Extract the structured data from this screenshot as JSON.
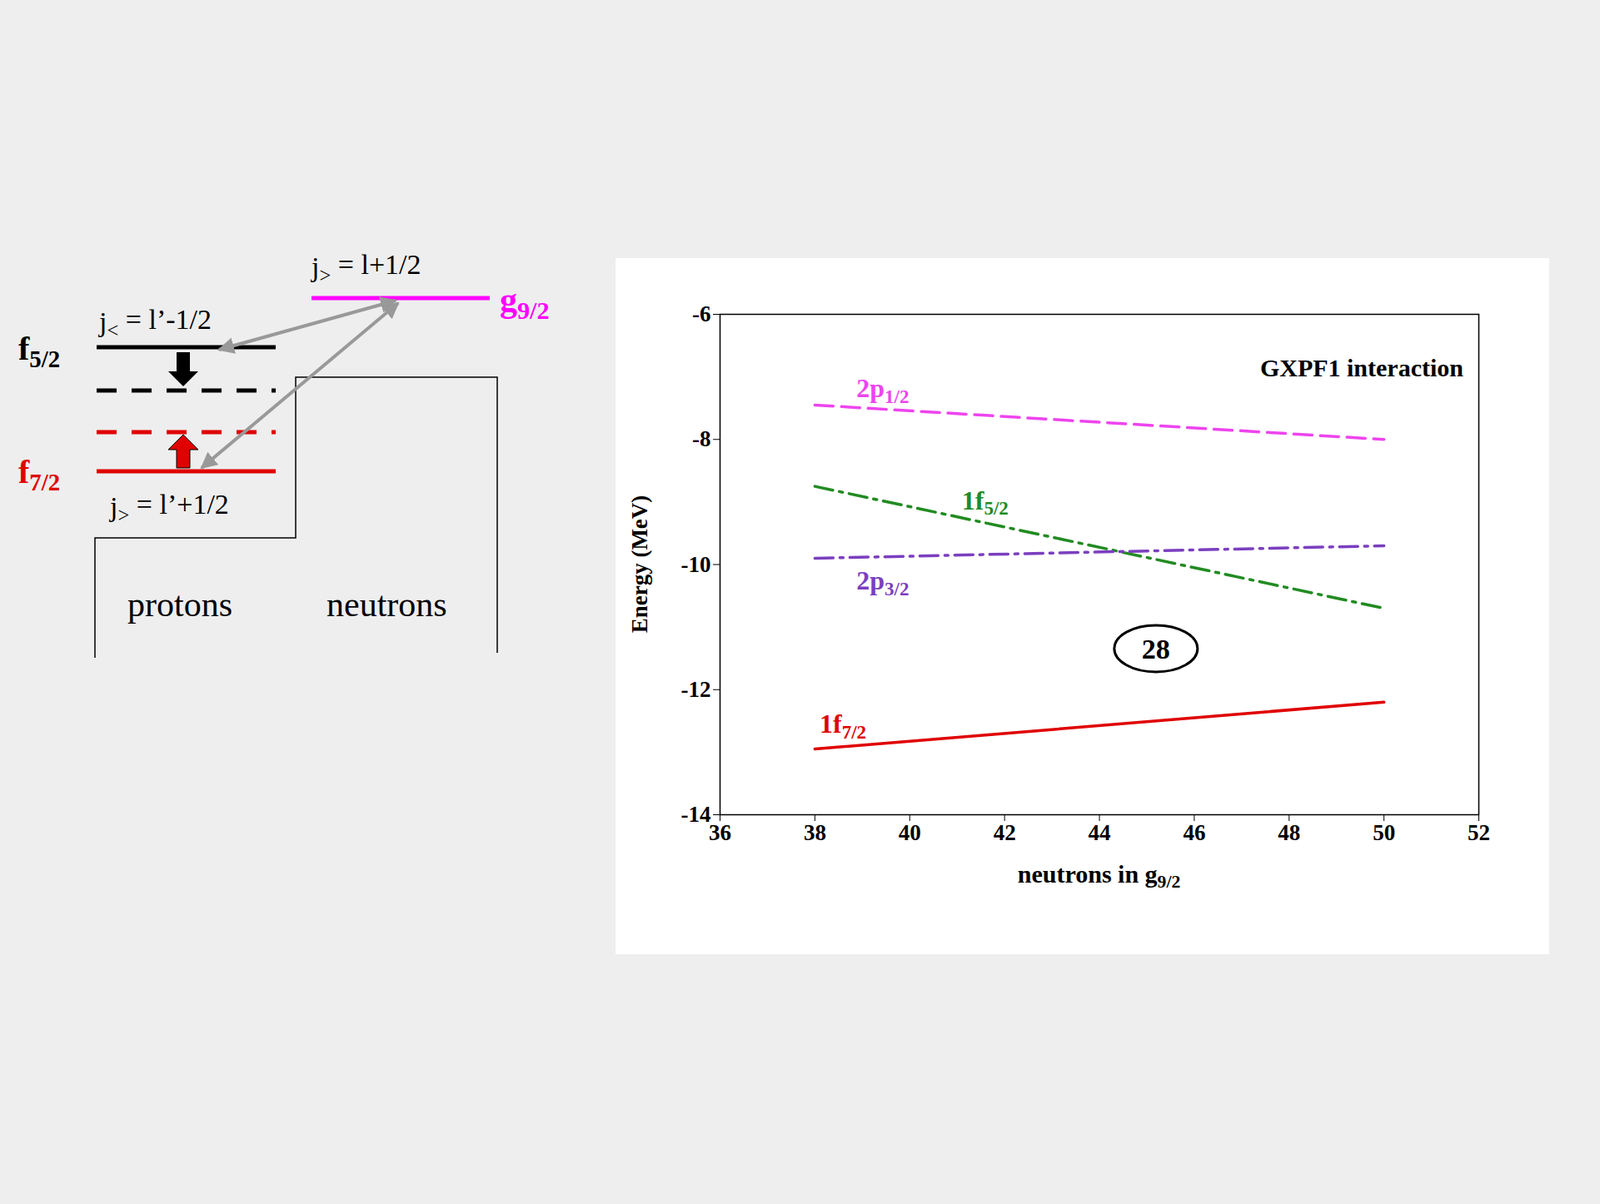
{
  "chart_data": {
    "type": "line",
    "x_label": "neutrons in g9/2",
    "y_label": "Energy (MeV)",
    "x": [
      38,
      50
    ],
    "xlim": [
      36,
      52
    ],
    "xticks": [
      36,
      38,
      40,
      42,
      44,
      46,
      48,
      50,
      52
    ],
    "ylim": [
      -14,
      -6
    ],
    "yticks": [
      -14,
      -12,
      -10,
      -8,
      -6
    ],
    "grid": false,
    "series": [
      {
        "name": "2p1/2",
        "color": "#ee44ee",
        "line_style": "dashed",
        "values": [
          -7.45,
          -8.0
        ]
      },
      {
        "name": "1f5/2",
        "color": "#228b22",
        "line_style": "dashdot",
        "values": [
          -8.75,
          -10.7
        ]
      },
      {
        "name": "2p3/2",
        "color": "#7b3fbf",
        "line_style": "dashdot",
        "values": [
          -9.9,
          -9.7
        ]
      },
      {
        "name": "1f7/2",
        "color": "#e00000",
        "line_style": "solid",
        "values": [
          -12.95,
          -12.2
        ]
      }
    ],
    "annotations": [
      {
        "text": "GXPF1 interaction"
      },
      {
        "text": "28",
        "x": 45.2,
        "y": -11.35
      }
    ]
  },
  "diagram": {
    "proton_levels": [
      {
        "label": "f5/2",
        "j": "j< = l’-1/2",
        "color": "#000000"
      },
      {
        "label": "f7/2",
        "j": "j> = l’+1/2",
        "color": "#e00000"
      }
    ],
    "neutron_level": {
      "label": "g9/2",
      "j": "j> = l+1/2",
      "color": "#ff00ff"
    },
    "groups": [
      "protons",
      "neutrons"
    ]
  }
}
